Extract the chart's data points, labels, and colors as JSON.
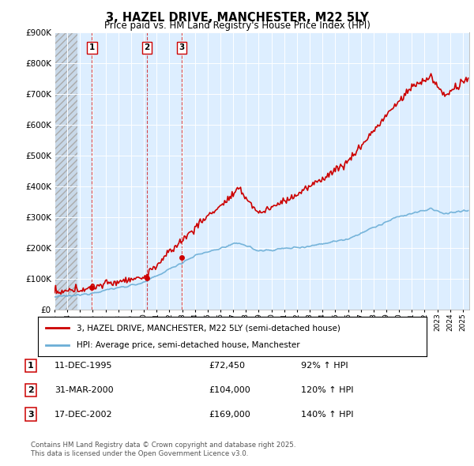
{
  "title": "3, HAZEL DRIVE, MANCHESTER, M22 5LY",
  "subtitle": "Price paid vs. HM Land Registry's House Price Index (HPI)",
  "ylim": [
    0,
    900000
  ],
  "yticks": [
    0,
    100000,
    200000,
    300000,
    400000,
    500000,
    600000,
    700000,
    800000,
    900000
  ],
  "hpi_color": "#6baed6",
  "price_color": "#cc0000",
  "bg_chart": "#ddeeff",
  "bg_figure": "#ffffff",
  "grid_color": "#ffffff",
  "legend_label_price": "3, HAZEL DRIVE, MANCHESTER, M22 5LY (semi-detached house)",
  "legend_label_hpi": "HPI: Average price, semi-detached house, Manchester",
  "sales": [
    {
      "label": "1",
      "date_idx": 1995.94,
      "price": 72450,
      "pct": "92%",
      "date_str": "11-DEC-1995"
    },
    {
      "label": "2",
      "date_idx": 2000.25,
      "price": 104000,
      "pct": "120%",
      "date_str": "31-MAR-2000"
    },
    {
      "label": "3",
      "date_idx": 2002.97,
      "price": 169000,
      "pct": "140%",
      "date_str": "17-DEC-2002"
    }
  ],
  "footer_line1": "Contains HM Land Registry data © Crown copyright and database right 2025.",
  "footer_line2": "This data is licensed under the Open Government Licence v3.0."
}
